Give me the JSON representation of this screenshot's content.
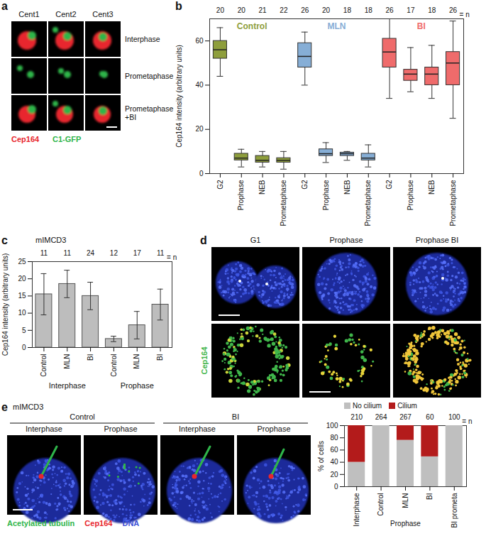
{
  "panels": {
    "a": {
      "letter": "a",
      "columns": [
        "Cent1",
        "Cent2",
        "Cent3"
      ],
      "rows": [
        "Interphase",
        "Prometaphase",
        "Prometaphase +BI"
      ],
      "stains": [
        {
          "name": "Cep164",
          "color": "#e8262d"
        },
        {
          "name": "C1-GFP",
          "color": "#2fb54a"
        }
      ]
    },
    "d": {
      "letter": "d",
      "columns": [
        "G1",
        "Prophase",
        "Prophase BI"
      ],
      "stain": {
        "name": "Cep164",
        "color": "#3fb54a"
      }
    },
    "e": {
      "letter": "e",
      "cell_line": "mIMCD3",
      "groups": [
        {
          "name": "Control",
          "columns": [
            "Interphase",
            "Prophase"
          ]
        },
        {
          "name": "BI",
          "columns": [
            "Interphase",
            "Prophase"
          ]
        }
      ],
      "stains": [
        {
          "name": "Acetylated tubulin",
          "color": "#2fb54a"
        },
        {
          "name": "Cep164",
          "color": "#e8262d"
        },
        {
          "name": "DNA",
          "color": "#3a4fd6"
        }
      ]
    }
  },
  "chart_data": [
    {
      "type": "box",
      "letter": "b",
      "y_label": "Cep164 intensity (arbitrary units)",
      "ylim": [
        0,
        70
      ],
      "yticks": [
        0,
        20,
        40,
        60
      ],
      "n_label": "= n",
      "series": [
        {
          "name": "Control",
          "color": "#8e9e3c",
          "categories": [
            "G2",
            "Prophase",
            "NEB",
            "Prometaphase"
          ],
          "n": [
            20,
            20,
            21,
            22
          ],
          "box": {
            "whisker_low": [
              44,
              3,
              3,
              2
            ],
            "q1": [
              52,
              6,
              5,
              5
            ],
            "median": [
              56,
              7,
              6,
              6
            ],
            "q3": [
              60,
              9,
              8,
              7
            ],
            "whisker_high": [
              66,
              11,
              10,
              10
            ]
          }
        },
        {
          "name": "MLN",
          "color": "#86aed6",
          "categories": [
            "G2",
            "Prophase",
            "NEB",
            "Prometaphase"
          ],
          "n": [
            26,
            20,
            18,
            18
          ],
          "box": {
            "whisker_low": [
              40,
              5,
              6,
              3
            ],
            "q1": [
              48,
              8,
              8,
              6
            ],
            "median": [
              53,
              9,
              9,
              7
            ],
            "q3": [
              59,
              11,
              9.5,
              9
            ],
            "whisker_high": [
              64,
              14,
              10,
              13
            ]
          }
        },
        {
          "name": "BI",
          "color": "#ef6b6b",
          "categories": [
            "G2",
            "Prophase",
            "NEB",
            "Prometaphase"
          ],
          "n": [
            26,
            17,
            18,
            26
          ],
          "box": {
            "whisker_low": [
              34,
              37,
              34,
              25
            ],
            "q1": [
              48,
              42,
              40,
              40
            ],
            "median": [
              55,
              45,
              45,
              50
            ],
            "q3": [
              61,
              47,
              48,
              55
            ],
            "whisker_high": [
              70,
              57,
              58,
              69
            ]
          }
        }
      ]
    },
    {
      "type": "bar",
      "letter": "c",
      "title": "mIMCD3",
      "y_label": "Cep164 intensity (arbitrary units)",
      "ylim": [
        0,
        25
      ],
      "yticks": [
        0,
        5,
        10,
        15,
        20,
        25
      ],
      "color": "#bdbdbd",
      "n_label": "= n",
      "groups": [
        {
          "name": "Interphase",
          "categories": [
            "Control",
            "MLN",
            "BI"
          ],
          "values": [
            15.5,
            18.5,
            15
          ],
          "errors": [
            6,
            4,
            4
          ],
          "n": [
            11,
            11,
            24
          ]
        },
        {
          "name": "Prophase",
          "categories": [
            "Control",
            "MLN",
            "BI"
          ],
          "values": [
            2.5,
            6.5,
            12.5
          ],
          "errors": [
            0.8,
            4,
            4.5
          ],
          "n": [
            12,
            17,
            11
          ]
        }
      ]
    },
    {
      "type": "bar",
      "stacked": true,
      "y_label": "% of cells",
      "ylim": [
        0,
        100
      ],
      "yticks": [
        0,
        20,
        40,
        60,
        80,
        100
      ],
      "categories": [
        "Interphase",
        "Control",
        "MLN",
        "BI",
        "BI prometa"
      ],
      "category_groups": [
        {
          "name": "Prophase",
          "categories": [
            "Control",
            "MLN",
            "BI"
          ]
        }
      ],
      "n": [
        210,
        264,
        267,
        60,
        100
      ],
      "n_label": "= n",
      "legend": "top",
      "series": [
        {
          "name": "No cilium",
          "color": "#bfbfbf",
          "values": [
            40,
            100,
            76,
            49,
            100
          ]
        },
        {
          "name": "Cilium",
          "color": "#b31b1b",
          "values": [
            60,
            0,
            24,
            51,
            0
          ]
        }
      ]
    }
  ]
}
